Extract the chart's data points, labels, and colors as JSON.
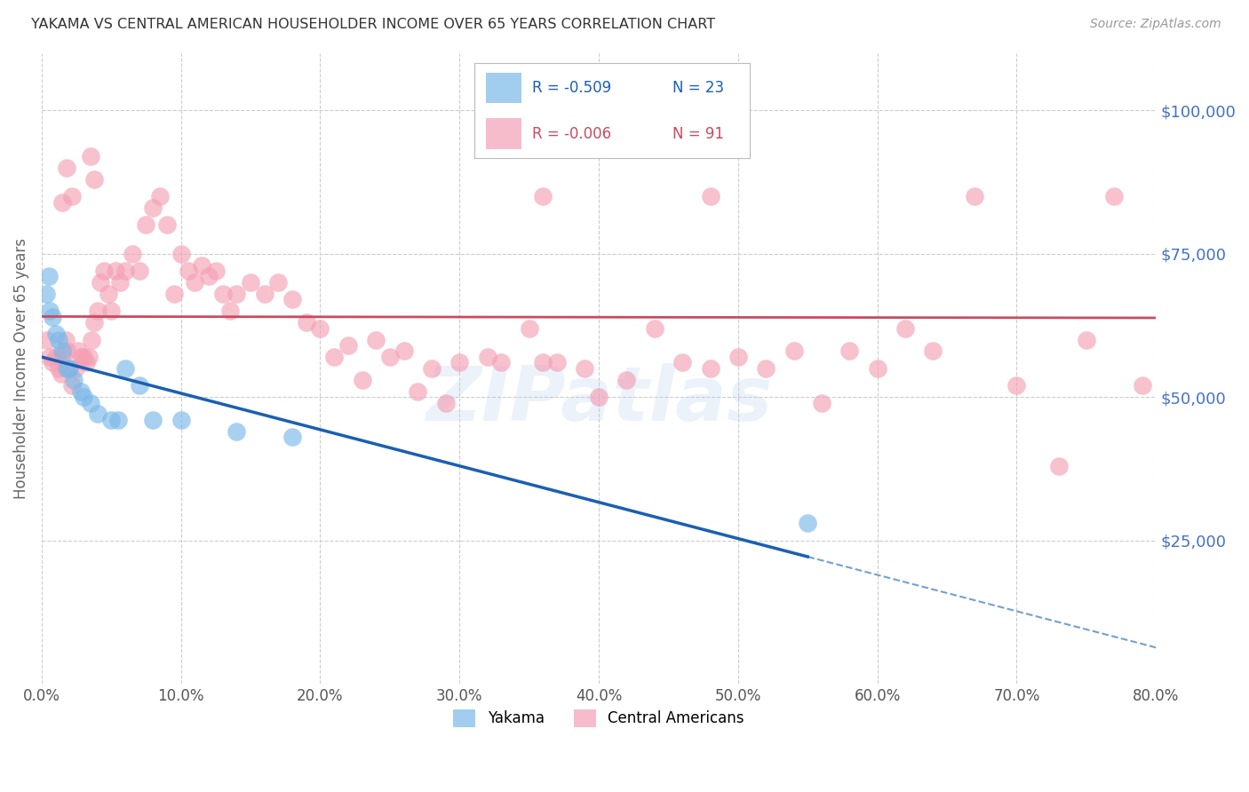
{
  "title": "YAKAMA VS CENTRAL AMERICAN HOUSEHOLDER INCOME OVER 65 YEARS CORRELATION CHART",
  "source": "Source: ZipAtlas.com",
  "ylabel": "Householder Income Over 65 years",
  "xmin": 0.0,
  "xmax": 80.0,
  "ymin": 0,
  "ymax": 110000,
  "yticks": [
    0,
    25000,
    50000,
    75000,
    100000
  ],
  "xticks": [
    0.0,
    10.0,
    20.0,
    30.0,
    40.0,
    50.0,
    60.0,
    70.0,
    80.0
  ],
  "background_color": "#ffffff",
  "grid_color": "#cccccc",
  "title_color": "#333333",
  "tick_label_color": "#4472c4",
  "yakama_color": "#7ab8e8",
  "central_color": "#f4a0b5",
  "yakama_line_color": "#1a5fb4",
  "central_line_color": "#c84b60",
  "watermark": "ZIPatlas",
  "yakama_x": [
    0.3,
    0.5,
    0.6,
    0.8,
    1.0,
    1.2,
    1.5,
    1.8,
    2.0,
    2.3,
    2.8,
    3.0,
    3.5,
    4.0,
    5.0,
    5.5,
    6.0,
    7.0,
    8.0,
    10.0,
    14.0,
    18.0,
    55.0
  ],
  "yakama_y": [
    68000,
    71000,
    65000,
    64000,
    61000,
    60000,
    58000,
    55000,
    55000,
    53000,
    51000,
    50000,
    49000,
    47000,
    46000,
    46000,
    55000,
    52000,
    46000,
    46000,
    44000,
    43000,
    28000
  ],
  "central_x": [
    0.4,
    0.6,
    0.8,
    1.0,
    1.2,
    1.4,
    1.5,
    1.7,
    1.8,
    2.0,
    2.2,
    2.4,
    2.6,
    2.8,
    3.0,
    3.2,
    3.4,
    3.6,
    3.8,
    4.0,
    4.2,
    4.5,
    4.8,
    5.0,
    5.3,
    5.6,
    6.0,
    6.5,
    7.0,
    7.5,
    8.0,
    8.5,
    9.0,
    9.5,
    10.0,
    10.5,
    11.0,
    11.5,
    12.0,
    12.5,
    13.0,
    13.5,
    14.0,
    15.0,
    16.0,
    17.0,
    18.0,
    19.0,
    20.0,
    21.0,
    22.0,
    23.0,
    24.0,
    25.0,
    26.0,
    27.0,
    28.0,
    29.0,
    30.0,
    32.0,
    33.0,
    35.0,
    36.0,
    37.0,
    39.0,
    40.0,
    42.0,
    44.0,
    46.0,
    48.0,
    50.0,
    52.0,
    54.0,
    56.0,
    58.0,
    60.0,
    62.0,
    64.0,
    67.0,
    70.0,
    73.0,
    75.0,
    77.0,
    79.0,
    36.0,
    48.0,
    3.5,
    3.8,
    1.5,
    1.8,
    2.2
  ],
  "central_y": [
    60000,
    57000,
    56000,
    57000,
    55000,
    54000,
    57000,
    60000,
    58000,
    55000,
    52000,
    55000,
    58000,
    57000,
    57000,
    56000,
    57000,
    60000,
    63000,
    65000,
    70000,
    72000,
    68000,
    65000,
    72000,
    70000,
    72000,
    75000,
    72000,
    80000,
    83000,
    85000,
    80000,
    68000,
    75000,
    72000,
    70000,
    73000,
    71000,
    72000,
    68000,
    65000,
    68000,
    70000,
    68000,
    70000,
    67000,
    63000,
    62000,
    57000,
    59000,
    53000,
    60000,
    57000,
    58000,
    51000,
    55000,
    49000,
    56000,
    57000,
    56000,
    62000,
    56000,
    56000,
    55000,
    50000,
    53000,
    62000,
    56000,
    55000,
    57000,
    55000,
    58000,
    49000,
    58000,
    55000,
    62000,
    58000,
    85000,
    52000,
    38000,
    60000,
    85000,
    52000,
    85000,
    85000,
    92000,
    88000,
    84000,
    90000,
    85000
  ]
}
